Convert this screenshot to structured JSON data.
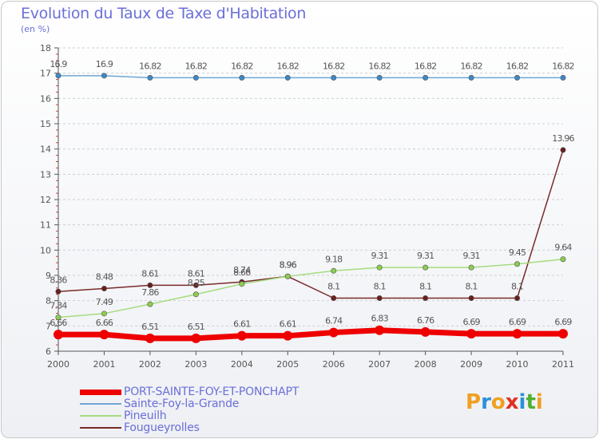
{
  "title": "Evolution du Taux de Taxe d'Habitation",
  "subtitle": "(en %)",
  "logo": {
    "letters": [
      "P",
      "r",
      "o",
      "x",
      "i",
      "t",
      "i"
    ],
    "colors": [
      "#f0a020",
      "#2c90d8",
      "#f0a020",
      "#e03020",
      "#2c90d8",
      "#50b030",
      "#f0a020"
    ]
  },
  "chart_data": {
    "type": "line",
    "x": [
      "2000",
      "2001",
      "2002",
      "2003",
      "2004",
      "2005",
      "2006",
      "2007",
      "2008",
      "2009",
      "2010",
      "2011"
    ],
    "ylim": [
      6,
      18
    ],
    "yticks": [
      "6",
      "7",
      "8",
      "9",
      "10",
      "11",
      "12",
      "13",
      "14",
      "15",
      "16",
      "17",
      "18"
    ],
    "grid": "horizontal dashed",
    "legend_position": "bottom-left",
    "series": [
      {
        "name": "PORT-SAINTE-FOY-ET-PONCHAPT",
        "color": "#ee0000",
        "marker": "#ee0000",
        "values": [
          6.66,
          6.66,
          6.51,
          6.51,
          6.61,
          6.61,
          6.74,
          6.83,
          6.76,
          6.69,
          6.69,
          6.69
        ],
        "labels": [
          "6.66",
          "6.66",
          "6.51",
          "6.51",
          "6.61",
          "6.61",
          "6.74",
          "6.83",
          "6.76",
          "6.69",
          "6.69",
          "6.69"
        ]
      },
      {
        "name": "Sainte-Foy-la-Grande",
        "color": "#6fa6d6",
        "marker": "#3f88c8",
        "values": [
          16.9,
          16.9,
          16.82,
          16.82,
          16.82,
          16.82,
          16.82,
          16.82,
          16.82,
          16.82,
          16.82,
          16.82
        ],
        "labels": [
          "16.9",
          "16.9",
          "16.82",
          "16.82",
          "16.82",
          "16.82",
          "16.82",
          "16.82",
          "16.82",
          "16.82",
          "16.82",
          "16.82"
        ]
      },
      {
        "name": "Pineuilh",
        "color": "#a6dc80",
        "marker": "#8ccd50",
        "values": [
          7.34,
          7.49,
          7.86,
          8.25,
          8.66,
          8.96,
          9.18,
          9.31,
          9.31,
          9.31,
          9.45,
          9.64
        ],
        "labels": [
          "7.34",
          "7.49",
          "7.86",
          "8.25",
          "8.66",
          "8.96",
          "9.18",
          "9.31",
          "9.31",
          "9.31",
          "9.45",
          "9.64"
        ]
      },
      {
        "name": "Fougueyrolles",
        "color": "#7a2a2a",
        "marker": "#6a1f1f",
        "values": [
          8.36,
          8.48,
          8.61,
          8.61,
          8.74,
          8.96,
          8.1,
          8.1,
          8.1,
          8.1,
          8.1,
          13.96
        ],
        "labels": [
          "8.36",
          "8.48",
          "8.61",
          "8.61",
          "8.74",
          "8.96",
          "8.1",
          "8.1",
          "8.1",
          "8.1",
          "8.1",
          "13.96"
        ]
      }
    ]
  }
}
